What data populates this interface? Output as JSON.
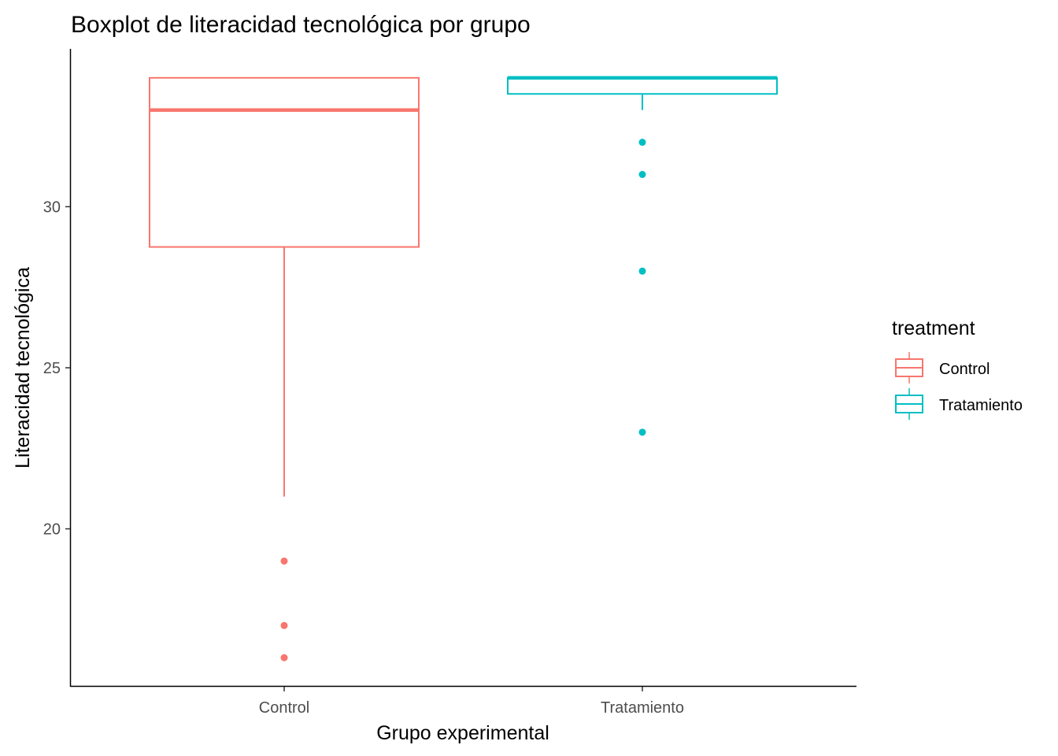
{
  "chart_data": {
    "type": "boxplot",
    "title": "Boxplot de literacidad tecnológica por grupo",
    "xlabel": "Grupo experimental",
    "ylabel": "Literacidad tecnológica",
    "ylim": [
      15.1,
      34.9
    ],
    "y_ticks": [
      20,
      25,
      30
    ],
    "grid": false,
    "legend": {
      "title": "treatment",
      "position": "right"
    },
    "categories": [
      "Control",
      "Tratamiento"
    ],
    "series": [
      {
        "name": "Control",
        "color": "#F8766D",
        "whisker_low": 21,
        "q1": 28.75,
        "median": 33,
        "q3": 34,
        "whisker_high": 34,
        "outliers": [
          19,
          17,
          16
        ]
      },
      {
        "name": "Tratamiento",
        "color": "#00BFC4",
        "whisker_low": 33,
        "q1": 33.5,
        "median": 34,
        "q3": 34,
        "whisker_high": 34,
        "outliers": [
          32,
          31,
          28,
          23
        ]
      }
    ]
  }
}
